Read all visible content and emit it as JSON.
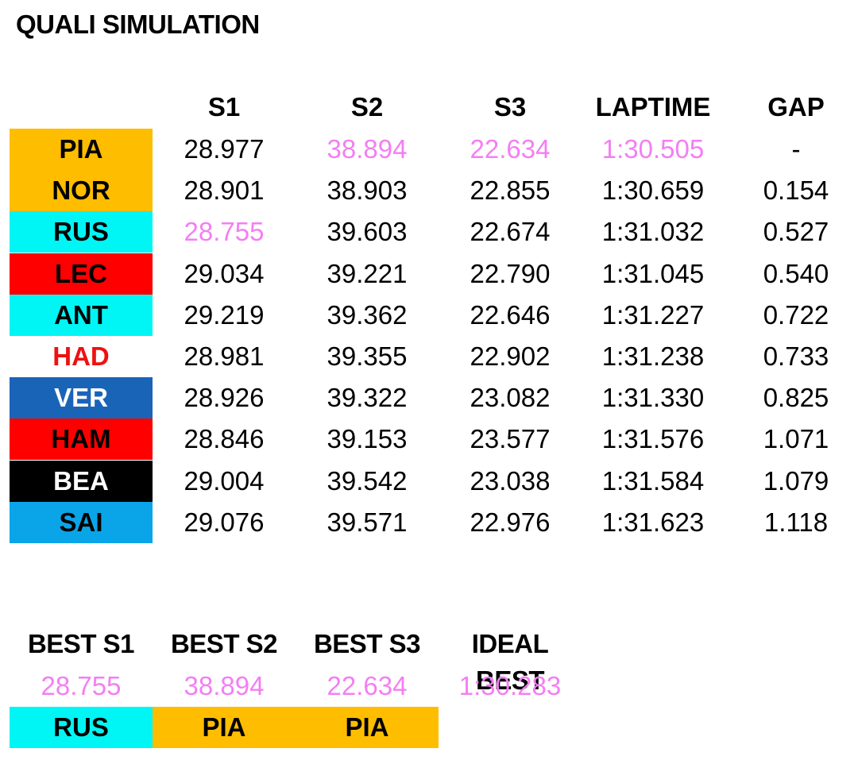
{
  "title": "QUALI SIMULATION",
  "headers": [
    "S1",
    "S2",
    "S3",
    "LAPTIME",
    "GAP"
  ],
  "colors": {
    "purple": "#f47ef4",
    "mclaren": "#ffbd00",
    "mercedes": "#00f5f5",
    "ferrari": "#ff0000",
    "racing_bulls_text": "#ee1111",
    "red_bull": "#1a64b8",
    "haas": "#000000",
    "williams": "#0aa5e8"
  },
  "rows": [
    {
      "driver": "PIA",
      "bg": "#ffbd00",
      "fg": "#000000",
      "s1": "28.977",
      "s2": "38.894",
      "s3": "22.634",
      "laptime": "1:30.505",
      "gap": "-",
      "purple": [
        "s2",
        "s3",
        "laptime"
      ]
    },
    {
      "driver": "NOR",
      "bg": "#ffbd00",
      "fg": "#000000",
      "s1": "28.901",
      "s2": "38.903",
      "s3": "22.855",
      "laptime": "1:30.659",
      "gap": "0.154",
      "purple": []
    },
    {
      "driver": "RUS",
      "bg": "#00f5f5",
      "fg": "#000000",
      "s1": "28.755",
      "s2": "39.603",
      "s3": "22.674",
      "laptime": "1:31.032",
      "gap": "0.527",
      "purple": [
        "s1"
      ]
    },
    {
      "driver": "LEC",
      "bg": "#ff0000",
      "fg": "#000000",
      "s1": "29.034",
      "s2": "39.221",
      "s3": "22.790",
      "laptime": "1:31.045",
      "gap": "0.540",
      "purple": []
    },
    {
      "driver": "ANT",
      "bg": "#00f5f5",
      "fg": "#000000",
      "s1": "29.219",
      "s2": "39.362",
      "s3": "22.646",
      "laptime": "1:31.227",
      "gap": "0.722",
      "purple": []
    },
    {
      "driver": "HAD",
      "bg": "#ffffff",
      "fg": "#ee1111",
      "s1": "28.981",
      "s2": "39.355",
      "s3": "22.902",
      "laptime": "1:31.238",
      "gap": "0.733",
      "purple": []
    },
    {
      "driver": "VER",
      "bg": "#1a64b8",
      "fg": "#ffffff",
      "s1": "28.926",
      "s2": "39.322",
      "s3": "23.082",
      "laptime": "1:31.330",
      "gap": "0.825",
      "purple": []
    },
    {
      "driver": "HAM",
      "bg": "#ff0000",
      "fg": "#000000",
      "s1": "28.846",
      "s2": "39.153",
      "s3": "23.577",
      "laptime": "1:31.576",
      "gap": "1.071",
      "purple": []
    },
    {
      "driver": "BEA",
      "bg": "#000000",
      "fg": "#ffffff",
      "s1": "29.004",
      "s2": "39.542",
      "s3": "23.038",
      "laptime": "1:31.584",
      "gap": "1.079",
      "purple": []
    },
    {
      "driver": "SAI",
      "bg": "#0aa5e8",
      "fg": "#000000",
      "s1": "29.076",
      "s2": "39.571",
      "s3": "22.976",
      "laptime": "1:31.623",
      "gap": "1.118",
      "purple": []
    }
  ],
  "best": {
    "headers": [
      "BEST S1",
      "BEST S2",
      "BEST S3",
      "IDEAL BEST"
    ],
    "values": [
      "28.755",
      "38.894",
      "22.634",
      "1:30.283"
    ],
    "drivers": [
      {
        "name": "RUS",
        "bg": "#00f5f5"
      },
      {
        "name": "PIA",
        "bg": "#ffbd00"
      },
      {
        "name": "PIA",
        "bg": "#ffbd00"
      }
    ]
  }
}
